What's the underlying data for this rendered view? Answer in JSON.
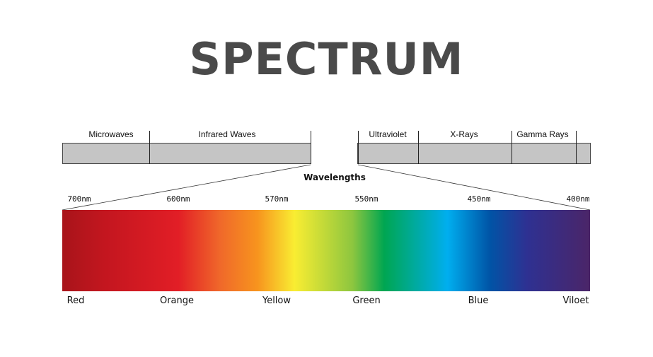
{
  "title": "SPECTRUM",
  "bands": {
    "left": [
      "Microwaves",
      "Infrared  Waves"
    ],
    "right": [
      "Ultraviolet",
      "X-Rays",
      "Gamma Rays"
    ]
  },
  "wavelengths_title": "Wavelengths",
  "wavelength_ticks": [
    "700nm",
    "600nm",
    "570nm",
    "550nm",
    "450nm",
    "400nm"
  ],
  "colors": [
    "Red",
    "Orange",
    "Yellow",
    "Green",
    "Blue",
    "Viloet"
  ],
  "palette": {
    "title_gray": "#4a4a4a",
    "band_gray": "#c5c5c5",
    "spectrum_stops": [
      "#a8141a",
      "#c3161f",
      "#e21e26",
      "#f0692a",
      "#f7941e",
      "#f9ed32",
      "#8dc63f",
      "#00a651",
      "#00aeef",
      "#0054a6",
      "#2e3192",
      "#4b2568"
    ]
  }
}
